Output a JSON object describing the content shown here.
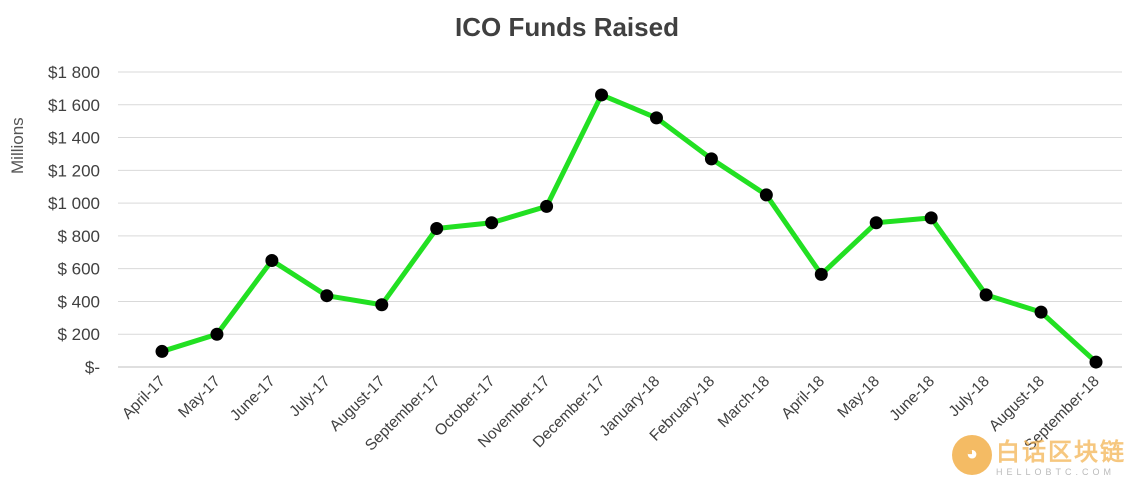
{
  "chart_data": {
    "type": "line",
    "title": "ICO Funds Raised",
    "ylabel": "Millions",
    "xlabel": "",
    "ylim": [
      0,
      1800
    ],
    "yticks": [
      0,
      200,
      400,
      600,
      800,
      1000,
      1200,
      1400,
      1600,
      1800
    ],
    "ytick_labels": [
      "$-",
      "$ 200",
      "$ 400",
      "$ 600",
      "$ 800",
      "$1 000",
      "$1 200",
      "$1 400",
      "$1 600",
      "$1 800"
    ],
    "grid": true,
    "line_color": "#22e022",
    "marker_color": "#000000",
    "categories": [
      "April-17",
      "May-17",
      "June-17",
      "July-17",
      "August-17",
      "September-17",
      "October-17",
      "November-17",
      "December-17",
      "January-18",
      "February-18",
      "March-18",
      "April-18",
      "May-18",
      "June-18",
      "July-18",
      "August-18",
      "September-18"
    ],
    "values": [
      95,
      200,
      650,
      435,
      380,
      845,
      880,
      980,
      1660,
      1520,
      1270,
      1050,
      565,
      880,
      910,
      440,
      335,
      30
    ]
  },
  "watermark": {
    "icon": "cat-face-icon",
    "text_cn": "白话区块链",
    "text_en": "HELLOBTC.COM"
  }
}
